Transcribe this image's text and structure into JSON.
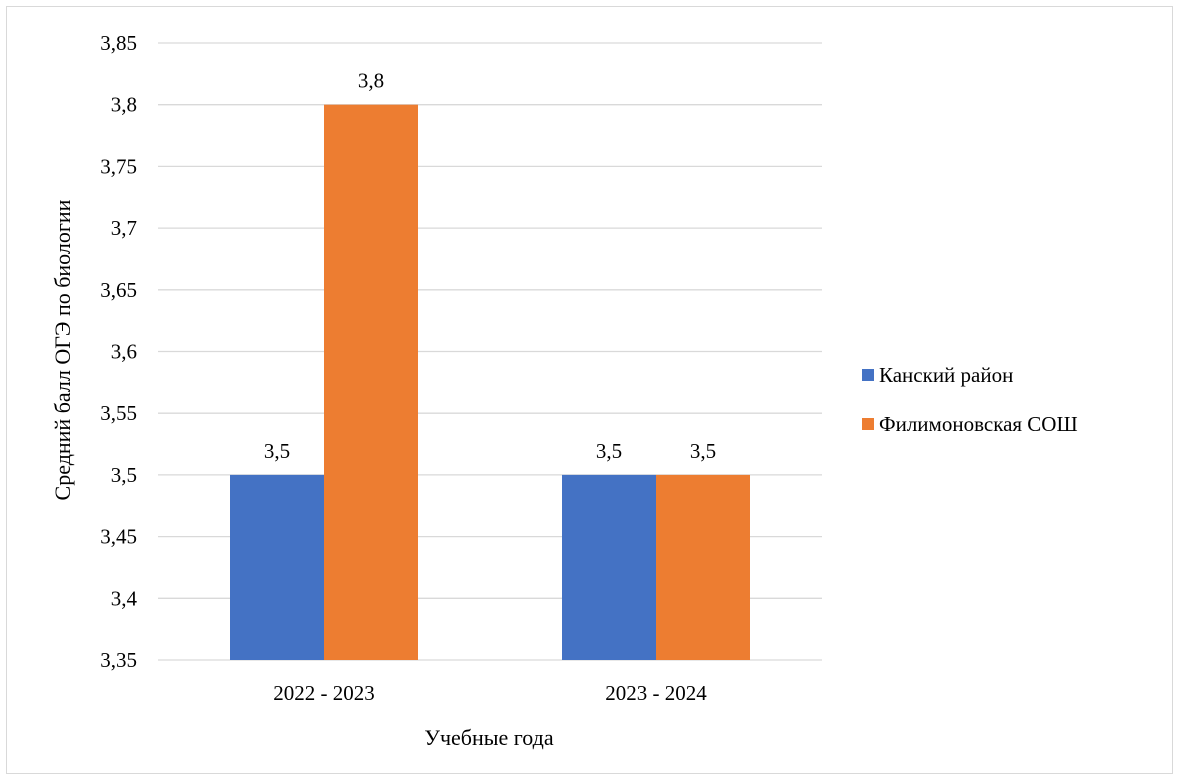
{
  "chart_data": {
    "type": "bar",
    "categories": [
      "2022 - 2023",
      "2023 - 2024"
    ],
    "series": [
      {
        "name": "Канский район",
        "values": [
          3.5,
          3.5
        ],
        "labels": [
          "3,5",
          "3,5"
        ],
        "color": "#4472C4"
      },
      {
        "name": "Филимоновская СОШ",
        "values": [
          3.8,
          3.5
        ],
        "labels": [
          "3,8",
          "3,5"
        ],
        "color": "#ED7D31"
      }
    ],
    "xlabel": "Учебные года",
    "ylabel": "Средний балл ОГЭ по биологии",
    "ylim": [
      3.35,
      3.85
    ],
    "yticks": [
      3.35,
      3.4,
      3.45,
      3.5,
      3.55,
      3.6,
      3.65,
      3.7,
      3.75,
      3.8,
      3.85
    ],
    "ytick_labels": [
      "3,35",
      "3,4",
      "3,45",
      "3,5",
      "3,55",
      "3,6",
      "3,65",
      "3,7",
      "3,75",
      "3,8",
      "3,85"
    ],
    "grid": true,
    "gridline_color": "#d9d9d9",
    "legend_position": "right"
  }
}
